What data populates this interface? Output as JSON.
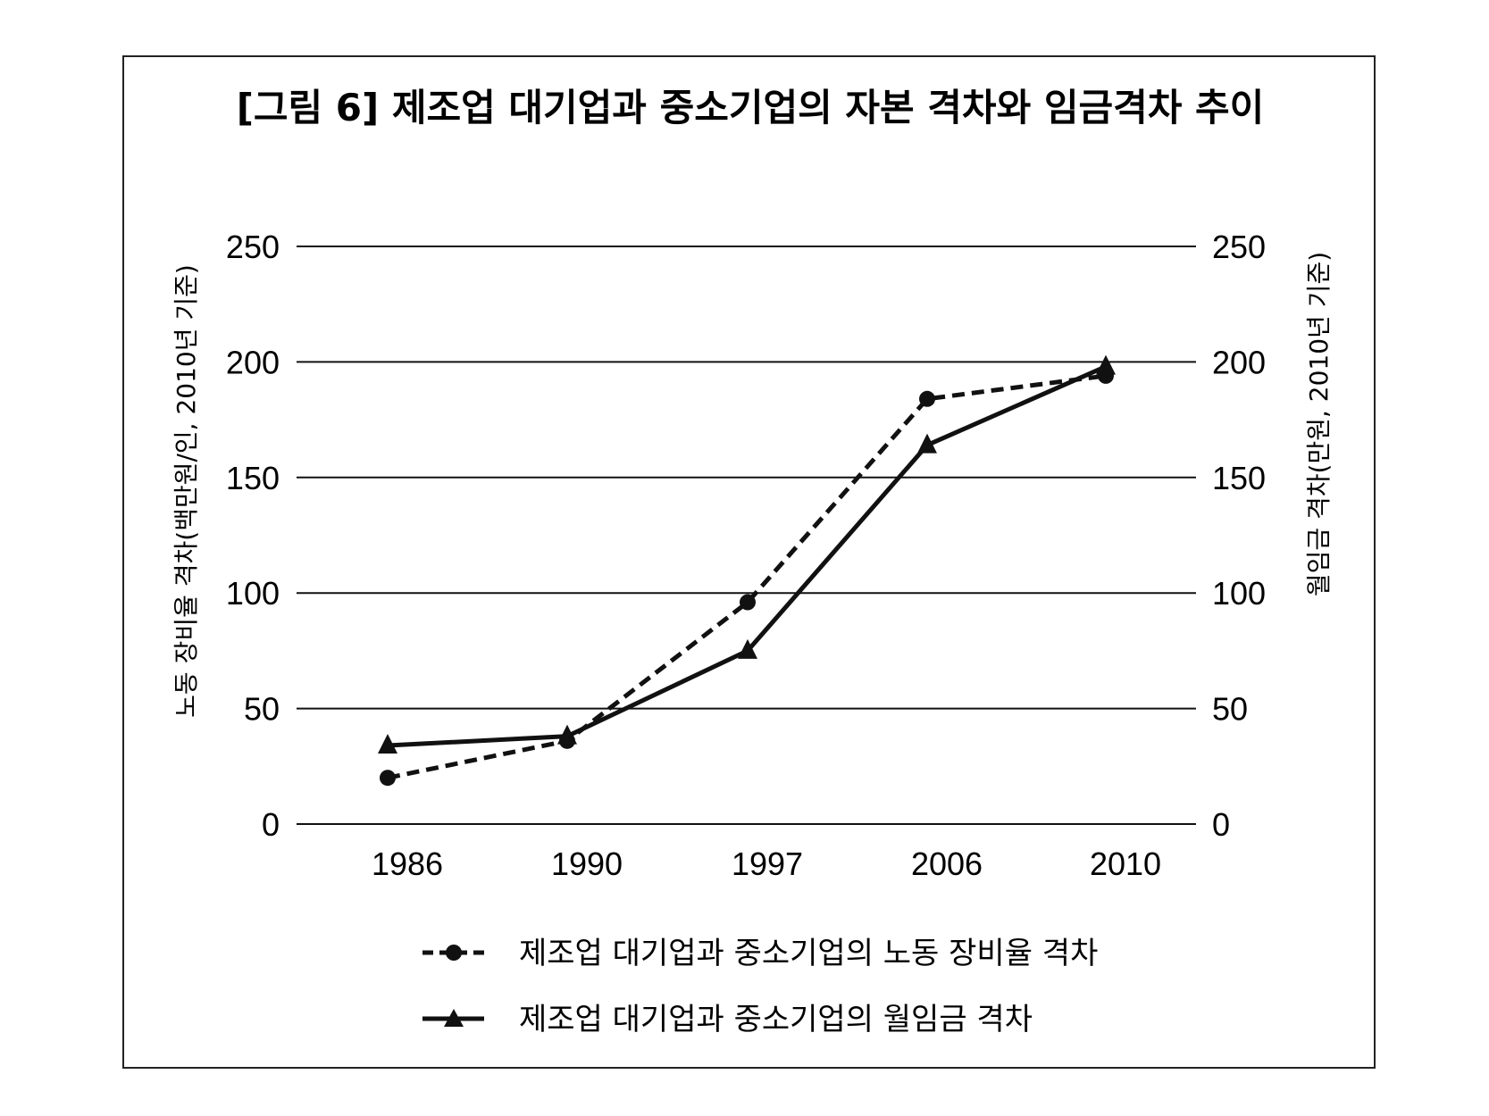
{
  "chart_data": {
    "type": "line",
    "title": "[그림 6] 제조업 대기업과 중소기업의 자본 격차와 임금격차 추이",
    "categories": [
      "1986",
      "1990",
      "1997",
      "2006",
      "2010"
    ],
    "ylabel": "노동 장비율 격차(백만원/인, 2010년 기준)",
    "y2label": "월임금 격차(만원, 2010년 기준)",
    "ylim": [
      0,
      250
    ],
    "y2lim": [
      0,
      250
    ],
    "yticks": [
      0,
      50,
      100,
      150,
      200,
      250
    ],
    "grid": true,
    "legend_position": "bottom",
    "series": [
      {
        "name": "제조업 대기업과 중소기업의 노동 장비율 격차",
        "axis": "left",
        "style": "dashed",
        "marker": "circle",
        "values": [
          20,
          36,
          96,
          184,
          194
        ]
      },
      {
        "name": "제조업 대기업과 중소기업의 월임금 격차",
        "axis": "right",
        "style": "solid",
        "marker": "triangle",
        "values": [
          34,
          38,
          75,
          164,
          198
        ]
      }
    ]
  }
}
